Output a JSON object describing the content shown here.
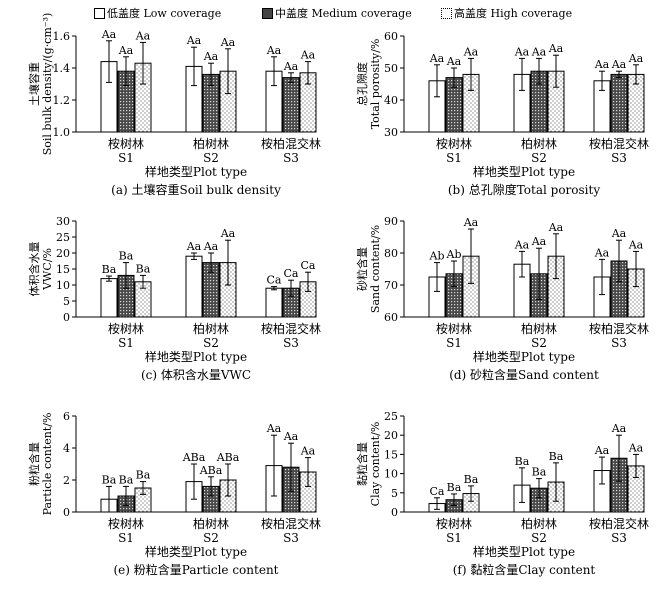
{
  "legend": [
    {
      "label": "低盖度 Low coverage",
      "pattern": "white"
    },
    {
      "label": "中盖度 Medium coverage",
      "pattern": "dense"
    },
    {
      "label": "高盖度 High coverage",
      "pattern": "dots"
    }
  ],
  "chart_data": [
    {
      "type": "bar",
      "title": "(a) 土壤容重Soil bulk density",
      "ylabel_cn": "土壤容重",
      "ylabel_en": "Soil bulk density/(g·cm⁻³)",
      "xlabel": "样地类型Plot type",
      "ylim": [
        1.0,
        1.6
      ],
      "yticks": [
        "1.0",
        "1.2",
        "1.4",
        "1.6"
      ],
      "categories": [
        {
          "cn": "桉树林",
          "code": "S1"
        },
        {
          "cn": "柏树林",
          "code": "S2"
        },
        {
          "cn": "桉柏混交林",
          "code": "S3"
        }
      ],
      "series": [
        {
          "name": "低盖度 Low coverage",
          "values": [
            1.44,
            1.41,
            1.38
          ],
          "errors": [
            0.13,
            0.12,
            0.09
          ],
          "labels": [
            "Aa",
            "Aa",
            "Aa"
          ]
        },
        {
          "name": "中盖度 Medium coverage",
          "values": [
            1.38,
            1.36,
            1.34
          ],
          "errors": [
            0.09,
            0.07,
            0.03
          ],
          "labels": [
            "Aa",
            "Aa",
            "Aa"
          ]
        },
        {
          "name": "高盖度 High coverage",
          "values": [
            1.43,
            1.38,
            1.37
          ],
          "errors": [
            0.13,
            0.14,
            0.07
          ],
          "labels": [
            "Aa",
            "Aa",
            "Aa"
          ]
        }
      ]
    },
    {
      "type": "bar",
      "title": "(b) 总孔隙度Total porosity",
      "ylabel_cn": "总孔隙度",
      "ylabel_en": "Total porosity/%",
      "xlabel": "样地类型Plot type",
      "ylim": [
        30,
        60
      ],
      "yticks": [
        "30",
        "40",
        "50",
        "60"
      ],
      "categories": [
        {
          "cn": "桉树林",
          "code": "S1"
        },
        {
          "cn": "柏树林",
          "code": "S2"
        },
        {
          "cn": "桉柏混交林",
          "code": "S3"
        }
      ],
      "series": [
        {
          "name": "低盖度 Low coverage",
          "values": [
            46,
            48,
            46
          ],
          "errors": [
            5,
            5,
            3
          ],
          "labels": [
            "Aa",
            "Aa",
            "Aa"
          ]
        },
        {
          "name": "中盖度 Medium coverage",
          "values": [
            47,
            49,
            48
          ],
          "errors": [
            3,
            4,
            1
          ],
          "labels": [
            "Aa",
            "Aa",
            "Aa"
          ]
        },
        {
          "name": "高盖度 High coverage",
          "values": [
            48,
            49,
            48
          ],
          "errors": [
            5,
            5,
            3
          ],
          "labels": [
            "Aa",
            "Aa",
            "Aa"
          ]
        }
      ]
    },
    {
      "type": "bar",
      "title": "(c) 体积含水量VWC",
      "ylabel_cn": "体积含水量",
      "ylabel_en": "VWC/%",
      "xlabel": "样地类型Plot type",
      "ylim": [
        0,
        30
      ],
      "yticks": [
        "0",
        "5",
        "10",
        "15",
        "20",
        "25",
        "30"
      ],
      "categories": [
        {
          "cn": "桉树林",
          "code": "S1"
        },
        {
          "cn": "柏树林",
          "code": "S2"
        },
        {
          "cn": "桉柏混交林",
          "code": "S3"
        }
      ],
      "series": [
        {
          "name": "低盖度 Low coverage",
          "values": [
            12,
            19,
            9
          ],
          "errors": [
            0.8,
            1.0,
            0.5
          ],
          "labels": [
            "Ba",
            "Aa",
            "Ca"
          ]
        },
        {
          "name": "中盖度 Medium coverage",
          "values": [
            13,
            17,
            9
          ],
          "errors": [
            4,
            3,
            2.5
          ],
          "labels": [
            "Ba",
            "Aa",
            "Ca"
          ]
        },
        {
          "name": "高盖度 High coverage",
          "values": [
            11,
            17,
            11
          ],
          "errors": [
            2,
            7,
            3
          ],
          "labels": [
            "Ba",
            "Aa",
            "Ca"
          ]
        }
      ]
    },
    {
      "type": "bar",
      "title": "(d) 砂粒含量Sand content",
      "ylabel_cn": "砂粒含量",
      "ylabel_en": "Sand content/%",
      "xlabel": "样地类型Plot type",
      "ylim": [
        60,
        90
      ],
      "yticks": [
        "60",
        "70",
        "80",
        "90"
      ],
      "categories": [
        {
          "cn": "桉树林",
          "code": "S1"
        },
        {
          "cn": "柏树林",
          "code": "S2"
        },
        {
          "cn": "桉柏混交林",
          "code": "S3"
        }
      ],
      "series": [
        {
          "name": "低盖度 Low coverage",
          "values": [
            72.5,
            76.5,
            72.5
          ],
          "errors": [
            4.5,
            4,
            5.5
          ],
          "labels": [
            "Ab",
            "Aa",
            "Aa"
          ]
        },
        {
          "name": "中盖度 Medium coverage",
          "values": [
            73.5,
            73.5,
            77.5
          ],
          "errors": [
            4,
            8,
            6.5
          ],
          "labels": [
            "Ab",
            "Aa",
            "Aa"
          ]
        },
        {
          "name": "高盖度 High coverage",
          "values": [
            79,
            79,
            75
          ],
          "errors": [
            8.5,
            7,
            5.5
          ],
          "labels": [
            "Aa",
            "Aa",
            "Aa"
          ]
        }
      ]
    },
    {
      "type": "bar",
      "title": "(e) 粉粒含量Particle content",
      "ylabel_cn": "粉粒含量",
      "ylabel_en": "Particle content/%",
      "xlabel": "样地类型Plot type",
      "ylim": [
        0,
        6
      ],
      "yticks": [
        "0",
        "2",
        "4",
        "6"
      ],
      "categories": [
        {
          "cn": "桉树林",
          "code": "S1"
        },
        {
          "cn": "柏树林",
          "code": "S2"
        },
        {
          "cn": "桉柏混交林",
          "code": "S3"
        }
      ],
      "series": [
        {
          "name": "低盖度 Low coverage",
          "values": [
            0.8,
            1.9,
            2.9
          ],
          "errors": [
            0.8,
            1.1,
            1.9
          ],
          "labels": [
            "Ba",
            "ABa",
            "Aa"
          ]
        },
        {
          "name": "中盖度 Medium coverage",
          "values": [
            1.0,
            1.6,
            2.8
          ],
          "errors": [
            0.6,
            0.6,
            1.5
          ],
          "labels": [
            "Ba",
            "ABa",
            "Aa"
          ]
        },
        {
          "name": "高盖度 High coverage",
          "values": [
            1.5,
            2.0,
            2.5
          ],
          "errors": [
            0.4,
            1.0,
            0.9
          ],
          "labels": [
            "Ba",
            "ABa",
            "Aa"
          ]
        }
      ]
    },
    {
      "type": "bar",
      "title": "(f) 黏粒含量Clay content",
      "ylabel_cn": "黏粒含量",
      "ylabel_en": "Clay content/%",
      "xlabel": "样地类型Plot type",
      "ylim": [
        0,
        25
      ],
      "yticks": [
        "0",
        "5",
        "10",
        "15",
        "20",
        "25"
      ],
      "categories": [
        {
          "cn": "桉树林",
          "code": "S1"
        },
        {
          "cn": "柏树林",
          "code": "S2"
        },
        {
          "cn": "桉柏混交林",
          "code": "S3"
        }
      ],
      "series": [
        {
          "name": "低盖度 Low coverage",
          "values": [
            2.2,
            7.0,
            10.8
          ],
          "errors": [
            1.5,
            4.5,
            3.5
          ],
          "labels": [
            "Ca",
            "Ba",
            "Aa"
          ]
        },
        {
          "name": "中盖度 Medium coverage",
          "values": [
            3.2,
            6.2,
            14.0
          ],
          "errors": [
            1.5,
            2.5,
            6.0
          ],
          "labels": [
            "Ba",
            "Ba",
            "Aa"
          ]
        },
        {
          "name": "高盖度 High coverage",
          "values": [
            4.8,
            7.8,
            12.0
          ],
          "errors": [
            2.0,
            5.0,
            3.0
          ],
          "labels": [
            "Ba",
            "Ba",
            "Aa"
          ]
        }
      ]
    }
  ]
}
